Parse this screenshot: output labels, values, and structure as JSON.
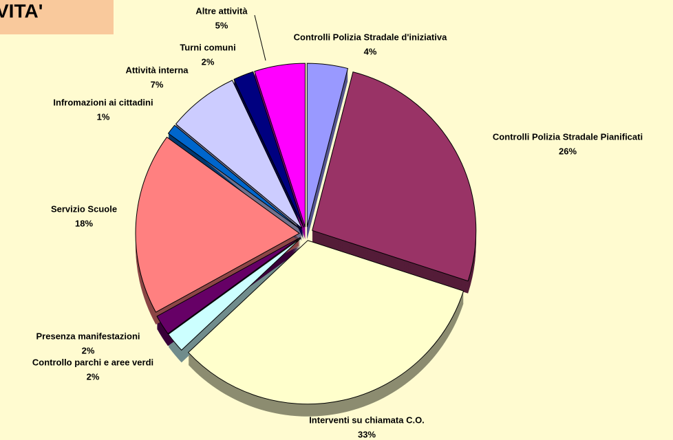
{
  "chart_data": {
    "type": "pie",
    "title": "VITA'",
    "categories": [
      "Controlli Polizia Stradale d'iniziativa",
      "Controlli Polizia Stradale Pianificati",
      "Interventi su chiamata C.O.",
      "Controllo parchi e aree verdi",
      "Presenza manifestazioni",
      "Servizio Scuole",
      "Infromazioni ai cittadini",
      "Attività interna",
      "Turni comuni",
      "Altre attività"
    ],
    "values": [
      4,
      26,
      33,
      2,
      2,
      18,
      1,
      7,
      2,
      5
    ],
    "value_labels": [
      "4%",
      "26%",
      "33%",
      "2%",
      "2%",
      "18%",
      "1%",
      "7%",
      "2%",
      "5%"
    ],
    "colors": [
      "#9999ff",
      "#993366",
      "#ffffcc",
      "#ccffff",
      "#660066",
      "#ff8080",
      "#0066cc",
      "#ccccff",
      "#000080",
      "#ff00ff"
    ]
  }
}
